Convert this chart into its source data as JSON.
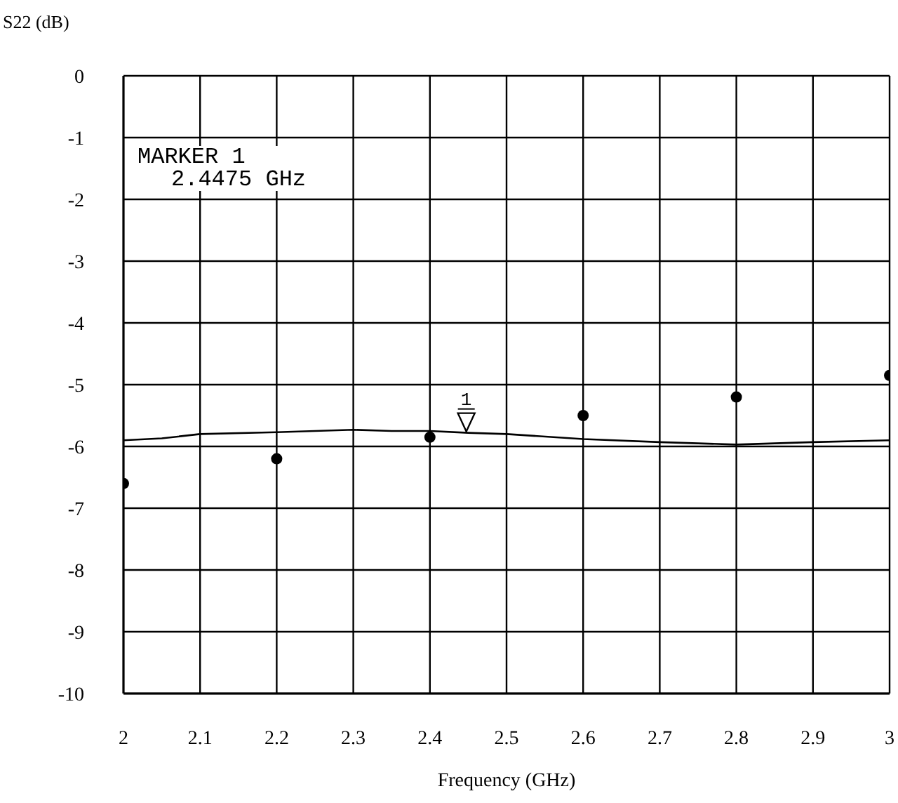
{
  "chart_data": {
    "type": "line",
    "xlabel": "Frequency (GHz)",
    "ylabel": "S22 (dB)",
    "xlim": [
      2,
      3
    ],
    "xticks": [
      2,
      2.1,
      2.2,
      2.3,
      2.4,
      2.5,
      2.6,
      2.7,
      2.8,
      2.9,
      3
    ],
    "ylim": [
      -10,
      0
    ],
    "yticks": [
      0,
      -1,
      -2,
      -3,
      -4,
      -5,
      -6,
      -7,
      -8,
      -9,
      -10
    ],
    "grid": true,
    "series": [
      {
        "color": "#000000",
        "marker": "none",
        "x": [
          2,
          2.05,
          2.1,
          2.2,
          2.3,
          2.35,
          2.4,
          2.45,
          2.5,
          2.6,
          2.7,
          2.8,
          2.9,
          3
        ],
        "values": [
          -5.9,
          -5.87,
          -5.8,
          -5.77,
          -5.73,
          -5.75,
          -5.75,
          -5.78,
          -5.8,
          -5.88,
          -5.93,
          -5.97,
          -5.93,
          -5.9
        ]
      },
      {
        "type": "scatter",
        "color": "#000000",
        "marker": "circle",
        "x": [
          2,
          2.2,
          2.4,
          2.6,
          2.8,
          3
        ],
        "values": [
          -6.6,
          -6.2,
          -5.85,
          -5.5,
          -5.2,
          -4.85
        ]
      }
    ],
    "annotations": [
      "MARKER 1",
      "2.4475 GHz",
      {
        "text": "1",
        "x": 2.4475,
        "y": -5.78
      }
    ]
  }
}
